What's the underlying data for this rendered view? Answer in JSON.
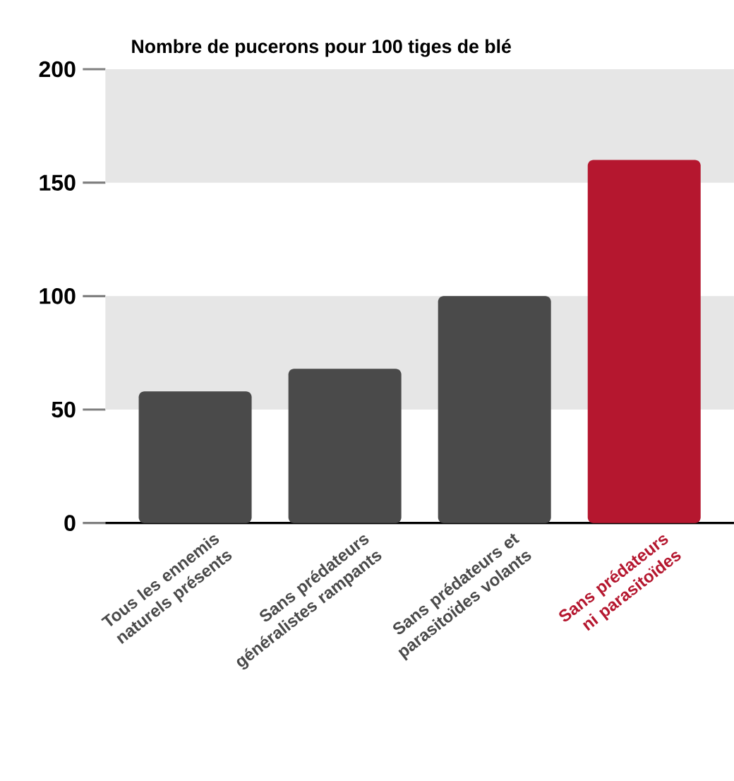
{
  "chart_data": {
    "type": "bar",
    "title": "Nombre de pucerons pour 100 tiges de blé",
    "categories": [
      "Tous les ennemis naturels présents",
      "Sans prédateurs généralistes rampants",
      "Sans prédateurs et parasitoïdes volants",
      "Sans prédateurs ni parasitoïdes"
    ],
    "values": [
      58,
      68,
      100,
      160
    ],
    "colors": [
      "#4a4a4a",
      "#4a4a4a",
      "#4a4a4a",
      "#b5172f"
    ],
    "ylim": [
      0,
      200
    ],
    "yticks": [
      0,
      50,
      100,
      150,
      200
    ],
    "bands": [
      {
        "axis": "y",
        "from": 50,
        "to": 100,
        "color": "#e6e6e6"
      },
      {
        "axis": "y",
        "from": 150,
        "to": 200,
        "color": "#e6e6e6"
      }
    ]
  }
}
